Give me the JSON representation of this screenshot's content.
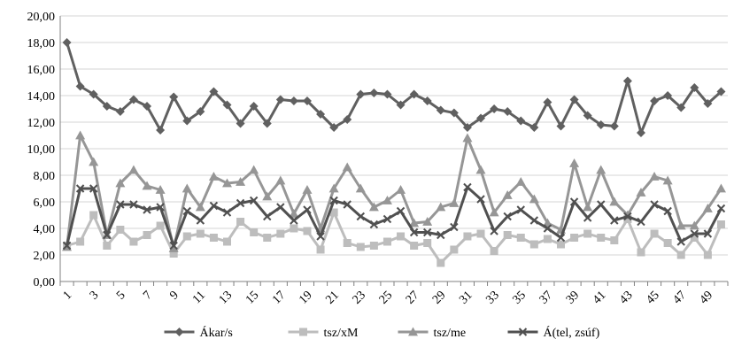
{
  "chart_data": {
    "type": "line",
    "title": "",
    "xlabel": "",
    "ylabel": "",
    "ylim": [
      0,
      20
    ],
    "y_tick_step": 2,
    "grid": "horizontal",
    "legend_position": "bottom",
    "x": [
      1,
      2,
      3,
      4,
      5,
      6,
      7,
      8,
      9,
      10,
      11,
      12,
      13,
      14,
      15,
      16,
      17,
      18,
      19,
      20,
      21,
      22,
      23,
      24,
      25,
      26,
      27,
      28,
      29,
      30,
      31,
      32,
      33,
      34,
      35,
      36,
      37,
      38,
      39,
      40,
      41,
      42,
      43,
      44,
      45,
      46,
      47,
      48,
      49,
      50
    ],
    "x_tick_labels": [
      1,
      3,
      5,
      7,
      9,
      11,
      13,
      15,
      17,
      19,
      21,
      23,
      25,
      27,
      29,
      31,
      33,
      35,
      37,
      39,
      41,
      43,
      45,
      47,
      49
    ],
    "y_tick_labels": [
      "0,00",
      "2,00",
      "4,00",
      "6,00",
      "8,00",
      "10,00",
      "12,00",
      "14,00",
      "16,00",
      "18,00",
      "20,00"
    ],
    "series": [
      {
        "name": "Ákar/s",
        "color": "#606060",
        "marker": "diamond",
        "values": [
          18.0,
          14.7,
          14.1,
          13.2,
          12.8,
          13.7,
          13.2,
          11.4,
          13.9,
          12.1,
          12.8,
          14.3,
          13.3,
          11.9,
          13.2,
          11.9,
          13.7,
          13.6,
          13.6,
          12.6,
          11.6,
          12.2,
          14.1,
          14.2,
          14.1,
          13.3,
          14.1,
          13.6,
          12.9,
          12.7,
          11.6,
          12.3,
          13.0,
          12.8,
          12.1,
          11.6,
          13.5,
          11.7,
          13.7,
          12.5,
          11.8,
          11.7,
          15.1,
          11.2,
          13.6,
          14.0,
          13.1,
          14.6,
          13.4,
          14.3
        ]
      },
      {
        "name": "tsz/xM",
        "color": "#bdbdbd",
        "marker": "square",
        "values": [
          2.7,
          3.0,
          5.0,
          2.7,
          3.9,
          3.0,
          3.5,
          4.2,
          2.1,
          3.4,
          3.6,
          3.3,
          3.0,
          4.5,
          3.7,
          3.3,
          3.6,
          4.0,
          3.8,
          2.4,
          5.2,
          2.9,
          2.6,
          2.7,
          3.0,
          3.4,
          2.7,
          2.9,
          1.4,
          2.4,
          3.4,
          3.6,
          2.3,
          3.5,
          3.3,
          2.8,
          3.2,
          2.8,
          3.3,
          3.6,
          3.3,
          3.1,
          4.7,
          2.2,
          3.6,
          2.9,
          2.0,
          3.3,
          2.0,
          4.3
        ]
      },
      {
        "name": "tsz/me",
        "color": "#969696",
        "marker": "triangle",
        "values": [
          2.6,
          11.0,
          9.0,
          3.5,
          7.4,
          8.4,
          7.2,
          6.9,
          2.5,
          7.0,
          5.6,
          7.9,
          7.4,
          7.5,
          8.4,
          6.4,
          7.6,
          5.1,
          6.9,
          4.0,
          7.0,
          8.6,
          7.0,
          5.6,
          6.1,
          6.9,
          4.4,
          4.5,
          5.6,
          5.9,
          10.8,
          8.4,
          5.2,
          6.5,
          7.5,
          6.2,
          4.4,
          3.9,
          8.9,
          5.6,
          8.4,
          6.0,
          5.0,
          6.7,
          7.9,
          7.6,
          4.2,
          4.2,
          5.5,
          7.0
        ]
      },
      {
        "name": "Á(tel, zsúf)",
        "color": "#505050",
        "marker": "x",
        "values": [
          2.7,
          7.0,
          7.0,
          3.5,
          5.8,
          5.8,
          5.4,
          5.6,
          2.7,
          5.3,
          4.6,
          5.7,
          5.2,
          5.9,
          6.1,
          4.9,
          5.6,
          4.6,
          5.4,
          3.4,
          6.1,
          5.8,
          4.9,
          4.3,
          4.7,
          5.3,
          3.7,
          3.7,
          3.5,
          4.1,
          7.1,
          6.2,
          3.8,
          4.9,
          5.4,
          4.6,
          4.0,
          3.3,
          6.0,
          4.8,
          5.8,
          4.6,
          4.9,
          4.5,
          5.8,
          5.3,
          3.0,
          3.6,
          3.6,
          5.5
        ]
      }
    ]
  }
}
